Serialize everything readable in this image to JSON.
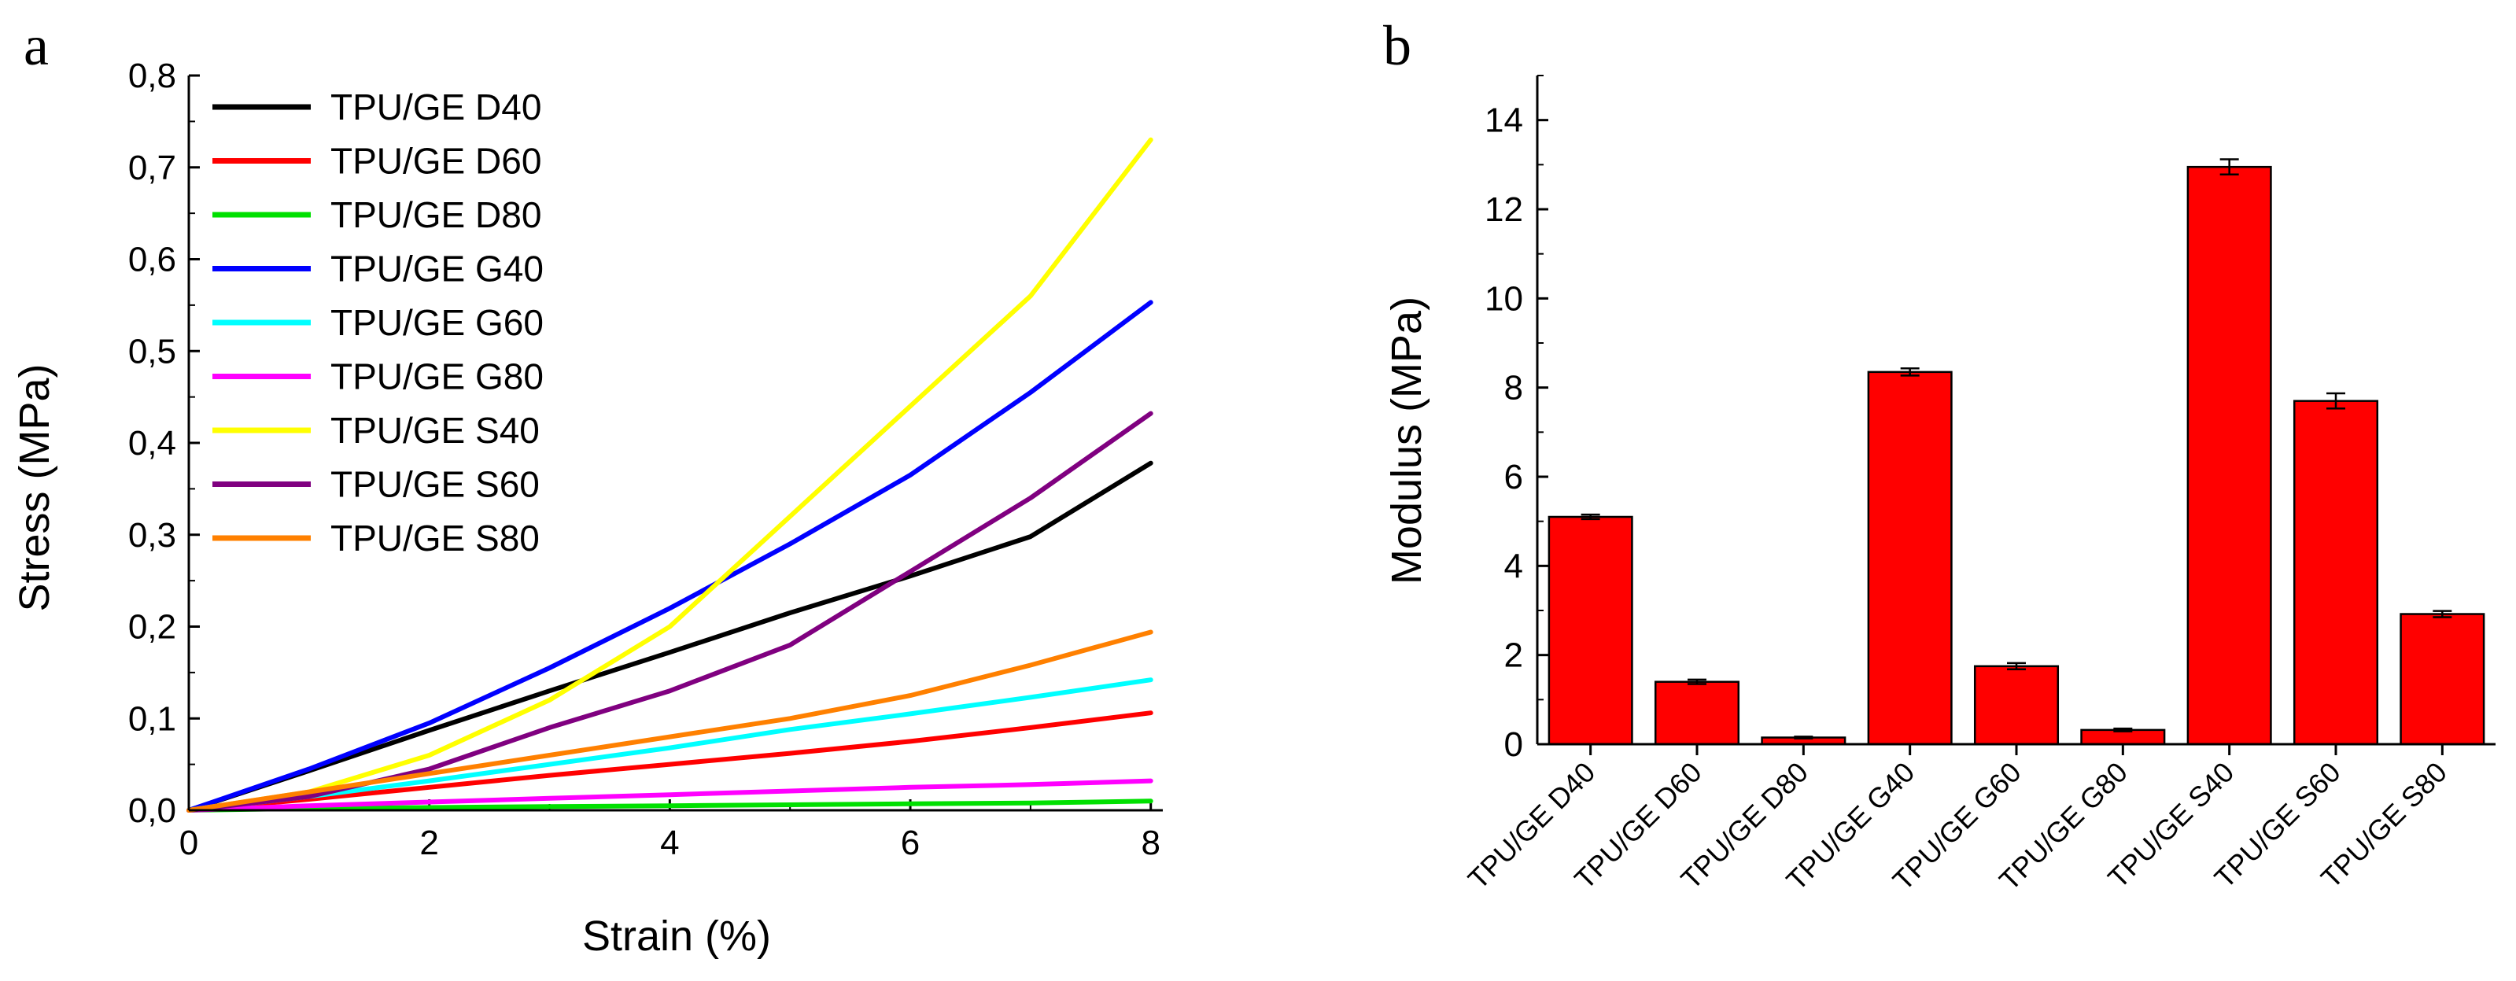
{
  "panels": {
    "a_label": "a",
    "b_label": "b"
  },
  "colors": {
    "TPU/GE D40": "#000000",
    "TPU/GE D60": "#ff0000",
    "TPU/GE D80": "#00e000",
    "TPU/GE G40": "#0000ff",
    "TPU/GE G60": "#00ffff",
    "TPU/GE G80": "#ff00ff",
    "TPU/GE S40": "#ffff00",
    "TPU/GE S60": "#800080",
    "TPU/GE S80": "#ff8000",
    "bar": "#ff0000"
  },
  "chart_data": [
    {
      "type": "line",
      "panel": "a",
      "xlabel": "Strain (%)",
      "ylabel": "Stress (MPa)",
      "xlim": [
        0,
        8.1
      ],
      "ylim": [
        0,
        0.8
      ],
      "xticks": [
        0,
        2,
        4,
        6,
        8
      ],
      "xtick_labels": [
        "0",
        "2",
        "4",
        "6",
        "8"
      ],
      "yticks": [
        0,
        0.1,
        0.2,
        0.3,
        0.4,
        0.5,
        0.6,
        0.7,
        0.8
      ],
      "ytick_labels": [
        "0,0",
        "0,1",
        "0,2",
        "0,3",
        "0,4",
        "0,5",
        "0,6",
        "0,7",
        "0,8"
      ],
      "legend": "top-left",
      "series": [
        {
          "name": "TPU/GE D40",
          "x": [
            0,
            1,
            2,
            3,
            4,
            5,
            6,
            7,
            8
          ],
          "y": [
            0,
            0.043,
            0.087,
            0.13,
            0.172,
            0.215,
            0.255,
            0.298,
            0.378
          ]
        },
        {
          "name": "TPU/GE D60",
          "x": [
            0,
            1,
            2,
            3,
            4,
            5,
            6,
            7,
            8
          ],
          "y": [
            0,
            0.012,
            0.025,
            0.038,
            0.05,
            0.062,
            0.075,
            0.09,
            0.106
          ]
        },
        {
          "name": "TPU/GE D80",
          "x": [
            0,
            1,
            2,
            3,
            4,
            5,
            6,
            7,
            8
          ],
          "y": [
            0,
            0.002,
            0.003,
            0.004,
            0.005,
            0.006,
            0.007,
            0.008,
            0.01
          ]
        },
        {
          "name": "TPU/GE G40",
          "x": [
            0,
            1,
            2,
            3,
            4,
            5,
            6,
            7,
            8
          ],
          "y": [
            0,
            0.045,
            0.095,
            0.155,
            0.22,
            0.29,
            0.365,
            0.455,
            0.553
          ]
        },
        {
          "name": "TPU/GE G60",
          "x": [
            0,
            1,
            2,
            3,
            4,
            5,
            6,
            7,
            8
          ],
          "y": [
            0,
            0.015,
            0.032,
            0.05,
            0.068,
            0.088,
            0.105,
            0.123,
            0.142
          ]
        },
        {
          "name": "TPU/GE G80",
          "x": [
            0,
            1,
            2,
            3,
            4,
            5,
            6,
            7,
            8
          ],
          "y": [
            0,
            0.005,
            0.009,
            0.013,
            0.017,
            0.021,
            0.025,
            0.028,
            0.032
          ]
        },
        {
          "name": "TPU/GE S40",
          "x": [
            0,
            1,
            2,
            3,
            4,
            5,
            6,
            7,
            8
          ],
          "y": [
            0,
            0.02,
            0.06,
            0.12,
            0.2,
            0.32,
            0.44,
            0.56,
            0.73
          ]
        },
        {
          "name": "TPU/GE S60",
          "x": [
            0,
            1,
            2,
            3,
            4,
            5,
            6,
            7,
            8
          ],
          "y": [
            0,
            0.015,
            0.045,
            0.09,
            0.13,
            0.18,
            0.26,
            0.34,
            0.432
          ]
        },
        {
          "name": "TPU/GE S80",
          "x": [
            0,
            1,
            2,
            3,
            4,
            5,
            6,
            7,
            8
          ],
          "y": [
            0,
            0.02,
            0.04,
            0.06,
            0.08,
            0.1,
            0.125,
            0.158,
            0.194
          ]
        }
      ]
    },
    {
      "type": "bar",
      "panel": "b",
      "xlabel": "",
      "ylabel": "Modulus (MPa)",
      "ylim": [
        0,
        15
      ],
      "yticks": [
        0,
        2,
        4,
        6,
        8,
        10,
        12,
        14
      ],
      "ytick_labels": [
        "0",
        "2",
        "4",
        "6",
        "8",
        "10",
        "12",
        "14"
      ],
      "categories": [
        "TPU/GE D40",
        "TPU/GE D60",
        "TPU/GE D80",
        "TPU/GE G40",
        "TPU/GE G60",
        "TPU/GE G80",
        "TPU/GE S40",
        "TPU/GE S60",
        "TPU/GE S80"
      ],
      "values": [
        5.1,
        1.4,
        0.15,
        8.35,
        1.75,
        0.32,
        12.95,
        7.7,
        2.92
      ],
      "errors": [
        0.05,
        0.05,
        0.02,
        0.08,
        0.07,
        0.03,
        0.17,
        0.17,
        0.07
      ]
    }
  ]
}
